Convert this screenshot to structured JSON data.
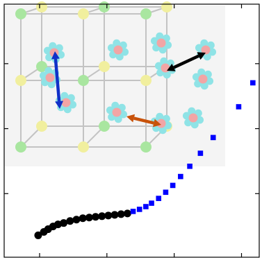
{
  "chart_data": {
    "type": "scatter",
    "xlim": [
      0,
      360
    ],
    "ylim": [
      0,
      370
    ],
    "grid": false,
    "legend": "none",
    "x_ticks": [
      50,
      145,
      240,
      335
    ],
    "y_ticks": [
      93,
      188,
      283
    ],
    "series": [
      {
        "marker": "circle",
        "color": "#000000",
        "values": [
          {
            "x": 48,
            "y": 32
          },
          {
            "x": 56,
            "y": 37
          },
          {
            "x": 62,
            "y": 41
          },
          {
            "x": 69,
            "y": 45
          },
          {
            "x": 76,
            "y": 48
          },
          {
            "x": 84,
            "y": 50
          },
          {
            "x": 93,
            "y": 53
          },
          {
            "x": 102,
            "y": 55
          },
          {
            "x": 111,
            "y": 57
          },
          {
            "x": 120,
            "y": 58
          },
          {
            "x": 129,
            "y": 59
          },
          {
            "x": 138,
            "y": 60
          },
          {
            "x": 147,
            "y": 61
          },
          {
            "x": 156,
            "y": 62
          },
          {
            "x": 165,
            "y": 63
          },
          {
            "x": 174,
            "y": 64
          }
        ]
      },
      {
        "marker": "square",
        "color": "#0000ff",
        "values": [
          {
            "x": 182,
            "y": 67
          },
          {
            "x": 191,
            "y": 70
          },
          {
            "x": 200,
            "y": 74
          },
          {
            "x": 208,
            "y": 79
          },
          {
            "x": 218,
            "y": 86
          },
          {
            "x": 228,
            "y": 95
          },
          {
            "x": 238,
            "y": 105
          },
          {
            "x": 249,
            "y": 118
          },
          {
            "x": 262,
            "y": 133
          },
          {
            "x": 277,
            "y": 152
          },
          {
            "x": 295,
            "y": 175
          },
          {
            "x": 331,
            "y": 220
          },
          {
            "x": 351,
            "y": 255
          }
        ]
      }
    ]
  },
  "inset": {
    "arrows": [
      {
        "name": "blue",
        "color": "#1030c8"
      },
      {
        "name": "black",
        "color": "#000000"
      },
      {
        "name": "orange",
        "color": "#c8520a"
      }
    ],
    "atom_colors": {
      "corner_green": "#a9e6a0",
      "corner_yellow": "#f1ef9e",
      "molecule_center": "#f2a5a5",
      "molecule_ligand": "#8fe3e6",
      "lattice_line": "#c3c3c3"
    }
  }
}
